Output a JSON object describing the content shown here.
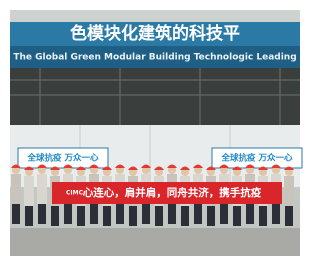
{
  "sign": {
    "chinese": "色模块化建筑的科技平",
    "english": "The Global Green Modular Building Technologic Leading"
  },
  "banners": [
    "全球抗疫 万众一心",
    "全球抗疫 万众一心"
  ],
  "red_banner": {
    "logo": "CIMC",
    "slogan": "心连心，肩并肩，同舟共济，携手抗疫"
  }
}
